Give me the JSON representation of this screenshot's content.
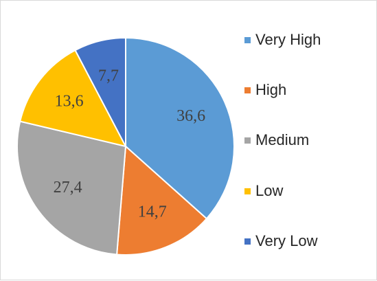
{
  "chart_data": {
    "type": "pie",
    "categories": [
      "Very High",
      "High",
      "Medium",
      "Low",
      "Very Low"
    ],
    "values": [
      36.6,
      14.7,
      27.4,
      13.6,
      7.7
    ],
    "data_labels": [
      "36,6",
      "14,7",
      "27,4",
      "13,6",
      "7,7"
    ],
    "colors": [
      "#5b9bd5",
      "#ed7d31",
      "#a5a5a5",
      "#ffc000",
      "#4472c4"
    ],
    "start_angle_deg": 0,
    "direction": "clockwise",
    "legend_position": "right"
  },
  "legend": {
    "items": [
      {
        "label": "Very High",
        "color": "#5b9bd5"
      },
      {
        "label": "High",
        "color": "#ed7d31"
      },
      {
        "label": "Medium",
        "color": "#a5a5a5"
      },
      {
        "label": "Low",
        "color": "#ffc000"
      },
      {
        "label": "Very Low",
        "color": "#4472c4"
      }
    ]
  }
}
